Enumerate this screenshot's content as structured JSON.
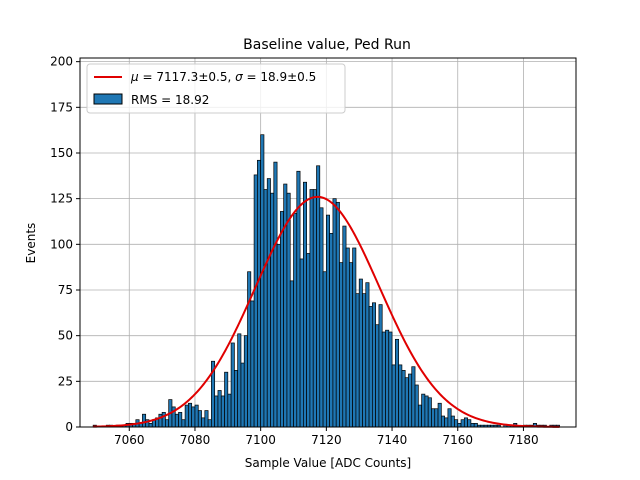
{
  "chart_data": {
    "type": "bar",
    "title": "Baseline value, Ped Run",
    "xlabel": "Sample Value [ADC Counts]",
    "ylabel": "Events",
    "xlim": [
      7045,
      7196
    ],
    "ylim": [
      0,
      202
    ],
    "xticks": [
      7060,
      7080,
      7100,
      7120,
      7140,
      7160,
      7180
    ],
    "yticks": [
      0,
      25,
      50,
      75,
      100,
      125,
      150,
      175,
      200
    ],
    "grid": true,
    "legend_position": "top-left",
    "bar_color": "#1f77b4",
    "fit_color": "#e00000",
    "bin_start": 7049,
    "bin_width": 1,
    "counts": [
      1,
      0,
      0,
      0,
      1,
      1,
      0,
      1,
      1,
      1,
      2,
      2,
      2,
      4,
      2,
      7,
      4,
      2,
      4,
      5,
      7,
      8,
      4,
      15,
      11,
      7,
      8,
      4,
      12,
      13,
      11,
      12,
      9,
      5,
      9,
      4,
      36,
      17,
      20,
      17,
      30,
      18,
      46,
      31,
      51,
      35,
      50,
      85,
      69,
      138,
      146,
      160,
      130,
      136,
      128,
      145,
      100,
      118,
      133,
      128,
      80,
      117,
      140,
      92,
      134,
      95,
      130,
      130,
      143,
      120,
      85,
      116,
      106,
      125,
      123,
      90,
      110,
      98,
      90,
      98,
      73,
      81,
      73,
      79,
      66,
      68,
      56,
      67,
      52,
      53,
      52,
      34,
      48,
      34,
      31,
      27,
      29,
      33,
      23,
      12,
      18,
      17,
      16,
      10,
      10,
      13,
      6,
      5,
      10,
      6,
      4,
      2,
      4,
      5,
      4,
      2,
      2,
      1,
      1,
      1,
      1,
      1,
      1,
      1,
      0,
      1,
      1,
      1,
      2,
      0,
      0,
      1,
      1,
      1,
      2,
      1,
      1,
      1,
      0,
      1,
      1,
      1
    ],
    "fit": {
      "mu": 7117.3,
      "sigma": 18.9,
      "amplitude": 126
    },
    "legend": {
      "fit_label_mu": "μ",
      "fit_label_text": " = 7117.3±0.5, ",
      "fit_label_sigma": "σ",
      "fit_label_text2": " = 18.9±0.5",
      "hist_label": "RMS = 18.92"
    }
  }
}
